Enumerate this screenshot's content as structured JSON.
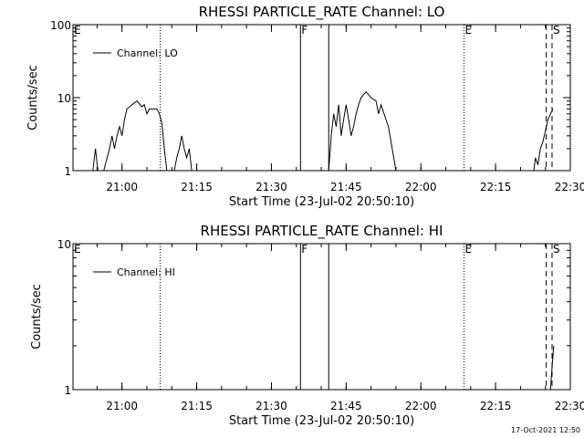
{
  "chart_data": [
    {
      "type": "line",
      "title": "RHESSI PARTICLE_RATE Channel: LO",
      "xlabel": "Start Time (23-Jul-02 20:50:10)",
      "ylabel": "Counts/sec",
      "yscale": "log",
      "ylim": [
        1,
        100
      ],
      "xlim": [
        "20:50:10",
        "22:30:00"
      ],
      "x_ticks": [
        "21:00",
        "21:15",
        "21:30",
        "21:45",
        "22:00",
        "22:15",
        "22:30"
      ],
      "y_ticks": [
        "1",
        "10",
        "100"
      ],
      "legend": {
        "position": "top-left",
        "entries": [
          "Channel: LO"
        ]
      },
      "markers": [
        {
          "label": "E",
          "time": "20:50:10",
          "style": "none"
        },
        {
          "label": "",
          "time": "21:07:40",
          "style": "dotted"
        },
        {
          "label": "F",
          "time": "21:35:50",
          "style": "solid"
        },
        {
          "label": "",
          "time": "21:41:30",
          "style": "solid"
        },
        {
          "label": "E",
          "time": "22:08:40",
          "style": "dotted"
        },
        {
          "label": "",
          "time": "22:25:10",
          "style": "dashed"
        },
        {
          "label": "S",
          "time": "22:26:20",
          "style": "dashed"
        }
      ],
      "series": [
        {
          "name": "Channel: LO",
          "segments": [
            [
              [
                "20:54:10",
                1
              ],
              [
                "20:54:40",
                2
              ],
              [
                "20:55:10",
                1
              ]
            ],
            [
              [
                "20:56:20",
                1
              ],
              [
                "20:57:30",
                2
              ],
              [
                "20:58:00",
                3
              ],
              [
                "20:58:30",
                2
              ],
              [
                "20:59:00",
                3
              ],
              [
                "20:59:30",
                4
              ],
              [
                "21:00:00",
                3
              ],
              [
                "21:00:30",
                5
              ],
              [
                "21:01:00",
                7
              ],
              [
                "21:02:00",
                8
              ],
              [
                "21:03:00",
                9
              ],
              [
                "21:04:00",
                7.5
              ],
              [
                "21:04:30",
                8
              ],
              [
                "21:05:00",
                6
              ],
              [
                "21:05:30",
                7
              ],
              [
                "21:06:00",
                7
              ],
              [
                "21:07:00",
                7
              ],
              [
                "21:07:30",
                6
              ],
              [
                "21:08:00",
                4.5
              ],
              [
                "21:08:30",
                2
              ],
              [
                "21:09:00",
                1
              ]
            ],
            [
              [
                "21:10:30",
                1
              ],
              [
                "21:11:00",
                1.5
              ],
              [
                "21:11:30",
                2
              ],
              [
                "21:12:00",
                3
              ],
              [
                "21:12:30",
                2
              ],
              [
                "21:13:00",
                1.5
              ],
              [
                "21:13:30",
                2
              ],
              [
                "21:14:00",
                1
              ]
            ],
            [
              [
                "21:41:30",
                1
              ],
              [
                "21:42:00",
                3
              ],
              [
                "21:42:30",
                6
              ],
              [
                "21:43:00",
                4
              ],
              [
                "21:43:30",
                8
              ],
              [
                "21:44:00",
                3
              ],
              [
                "21:44:30",
                5
              ],
              [
                "21:45:00",
                8
              ],
              [
                "21:45:30",
                5
              ],
              [
                "21:46:00",
                3
              ],
              [
                "21:46:30",
                4
              ],
              [
                "21:47:00",
                6
              ],
              [
                "21:47:30",
                8
              ],
              [
                "21:48:00",
                10
              ],
              [
                "21:48:30",
                11
              ],
              [
                "21:49:00",
                12
              ],
              [
                "21:49:30",
                11
              ],
              [
                "21:50:00",
                10
              ],
              [
                "21:51:00",
                9
              ],
              [
                "21:51:30",
                6
              ],
              [
                "21:52:00",
                8
              ],
              [
                "21:53:00",
                5
              ],
              [
                "21:53:30",
                4
              ],
              [
                "21:54:00",
                2.5
              ],
              [
                "21:55:00",
                1
              ]
            ],
            [
              [
                "22:22:40",
                1
              ],
              [
                "22:23:00",
                1.5
              ],
              [
                "22:23:30",
                1.2
              ],
              [
                "22:24:00",
                2
              ],
              [
                "22:24:30",
                2.5
              ],
              [
                "22:25:00",
                3.5
              ],
              [
                "22:25:30",
                5
              ],
              [
                "22:26:30",
                7
              ]
            ]
          ]
        }
      ]
    },
    {
      "type": "line",
      "title": "RHESSI PARTICLE_RATE Channel: HI",
      "xlabel": "Start Time (23-Jul-02 20:50:10)",
      "ylabel": "Counts/sec",
      "yscale": "log",
      "ylim": [
        1,
        10
      ],
      "xlim": [
        "20:50:10",
        "22:30:00"
      ],
      "x_ticks": [
        "21:00",
        "21:15",
        "21:30",
        "21:45",
        "22:00",
        "22:15",
        "22:30"
      ],
      "y_ticks": [
        "1",
        "10"
      ],
      "legend": {
        "position": "top-left",
        "entries": [
          "Channel: HI"
        ]
      },
      "markers": [
        {
          "label": "E",
          "time": "20:50:10",
          "style": "none"
        },
        {
          "label": "",
          "time": "21:07:40",
          "style": "dotted"
        },
        {
          "label": "F",
          "time": "21:35:50",
          "style": "solid"
        },
        {
          "label": "",
          "time": "21:41:30",
          "style": "solid"
        },
        {
          "label": "E",
          "time": "22:08:40",
          "style": "dotted"
        },
        {
          "label": "",
          "time": "22:25:10",
          "style": "dashed"
        },
        {
          "label": "S",
          "time": "22:26:20",
          "style": "dashed"
        }
      ],
      "series": [
        {
          "name": "Channel: HI",
          "segments": [
            [
              [
                "22:26:00",
                1
              ],
              [
                "22:26:40",
                2
              ]
            ]
          ]
        }
      ]
    }
  ],
  "footer": {
    "timestamp": "17-Oct-2021 12:50"
  }
}
